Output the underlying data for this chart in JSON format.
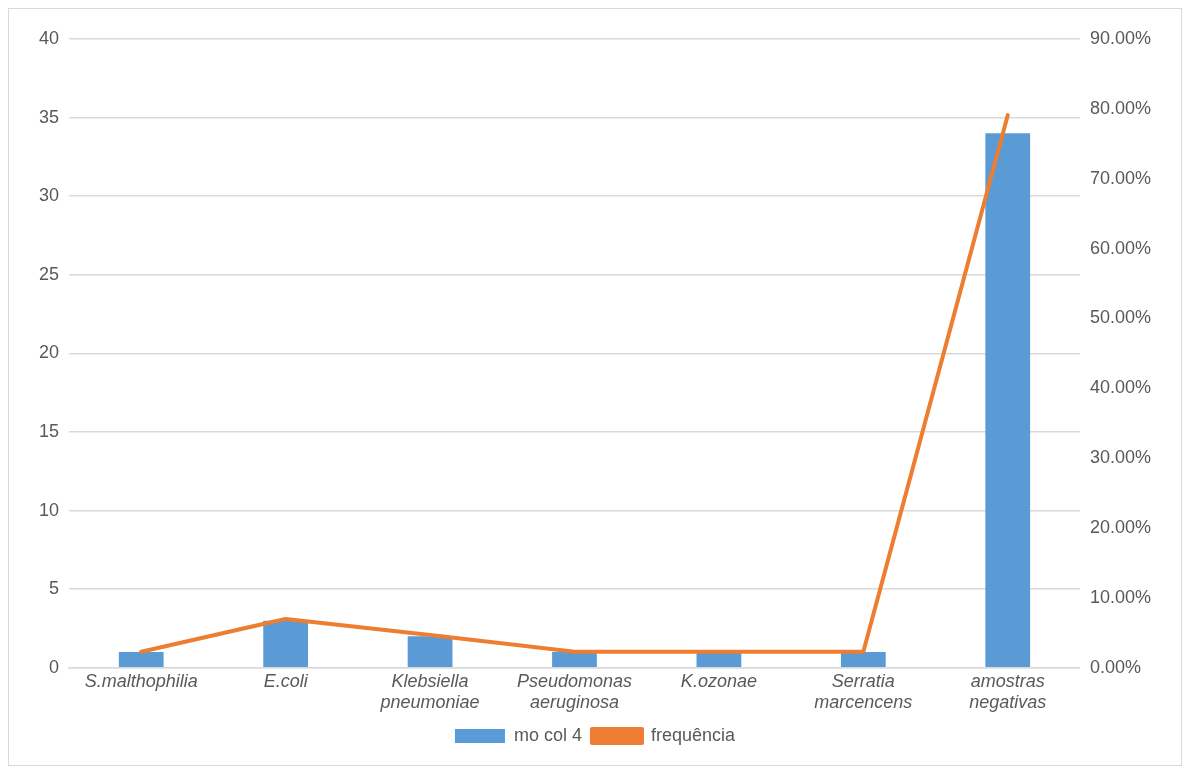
{
  "chart_data": {
    "type": "bar",
    "categories": [
      "S.malthophilia",
      "E.coli",
      "Klebsiella pneumoniae",
      "Pseudomonas aeruginosa",
      "K.ozonae",
      "Serratia marcencens",
      "amostras negativas"
    ],
    "series": [
      {
        "name": "mo col 4",
        "color": "#5b9bd5",
        "values": [
          1,
          3,
          2,
          1,
          1,
          1,
          34
        ]
      },
      {
        "name": "frequência",
        "type": "line",
        "axis": "y2",
        "color": "#ed7d31",
        "values": [
          2.3,
          7.0,
          4.7,
          2.3,
          2.3,
          2.3,
          79.1
        ]
      }
    ],
    "ylim": [
      0,
      40
    ],
    "yticks": [
      0,
      5,
      10,
      15,
      20,
      25,
      30,
      35,
      40
    ],
    "y2lim": [
      0,
      90
    ],
    "y2ticks": [
      {
        "value": 0,
        "label": "0.00%"
      },
      {
        "value": 10,
        "label": "10.00%"
      },
      {
        "value": 20,
        "label": "20.00%"
      },
      {
        "value": 30,
        "label": "30.00%"
      },
      {
        "value": 40,
        "label": "40.00%"
      },
      {
        "value": 50,
        "label": "50.00%"
      },
      {
        "value": 60,
        "label": "60.00%"
      },
      {
        "value": 70,
        "label": "70.00%"
      },
      {
        "value": 80,
        "label": "80.00%"
      },
      {
        "value": 90,
        "label": "90.00%"
      }
    ],
    "grid": "y",
    "legend": "bottom",
    "marker": "none",
    "line_style": "solid"
  }
}
